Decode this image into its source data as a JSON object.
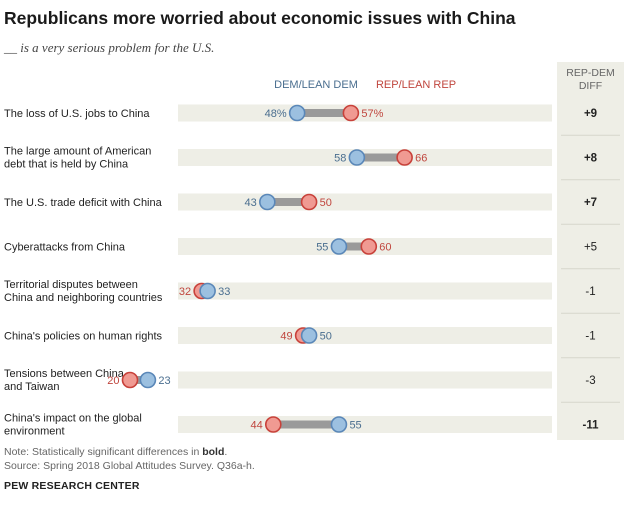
{
  "header": {
    "title": "Republicans more worried about economic issues with China",
    "subtitle": "__ is a very serious problem for the U.S."
  },
  "colors": {
    "dem": "#5a87b8",
    "dem_fill": "#9cc0e0",
    "rep": "#c8413a",
    "rep_fill": "#f09a92",
    "dem_text": "#4a6e8f",
    "rep_text": "#c0463e",
    "track": "#eeeee6",
    "connector": "#9a9a9a",
    "diff_column": "#eeeee6"
  },
  "chart_data": {
    "type": "dot-plot",
    "title": "Republicans more worried about economic issues with China",
    "subtitle": "__ is a very serious problem for the U.S.",
    "unit": "%",
    "xlim": [
      0,
      100
    ],
    "legend": {
      "dem": "DEM/LEAN DEM",
      "rep": "REP/LEAN REP"
    },
    "diff_header": [
      "REP-DEM",
      "DIFF"
    ],
    "rows": [
      {
        "label": [
          "The loss of U.S. jobs to China"
        ],
        "dem": 48,
        "rep": 57,
        "dem_label": "48%",
        "rep_label": "57%",
        "diff": "+9",
        "bold": true
      },
      {
        "label": [
          "The large amount of American",
          "debt that is held by China"
        ],
        "dem": 58,
        "rep": 66,
        "dem_label": "58",
        "rep_label": "66",
        "diff": "+8",
        "bold": true
      },
      {
        "label": [
          "The U.S. trade deficit with China"
        ],
        "dem": 43,
        "rep": 50,
        "dem_label": "43",
        "rep_label": "50",
        "diff": "+7",
        "bold": true
      },
      {
        "label": [
          "Cyberattacks from China"
        ],
        "dem": 55,
        "rep": 60,
        "dem_label": "55",
        "rep_label": "60",
        "diff": "+5",
        "bold": false
      },
      {
        "label": [
          "Territorial disputes between",
          "China and neighboring countries"
        ],
        "dem": 33,
        "rep": 32,
        "dem_label": "33",
        "rep_label": "32",
        "diff": "-1",
        "bold": false
      },
      {
        "label": [
          "China's policies on human rights"
        ],
        "dem": 50,
        "rep": 49,
        "dem_label": "50",
        "rep_label": "49",
        "diff": "-1",
        "bold": false
      },
      {
        "label": [
          "Tensions between China",
          "and Taiwan"
        ],
        "dem": 23,
        "rep": 20,
        "dem_label": "23",
        "rep_label": "20",
        "diff": "-3",
        "bold": false
      },
      {
        "label": [
          "China's impact on the global",
          "environment"
        ],
        "dem": 55,
        "rep": 44,
        "dem_label": "55",
        "rep_label": "44",
        "diff": "-11",
        "bold": true
      }
    ]
  },
  "footer": {
    "note_prefix": "Note: Statistically significant differences in ",
    "note_bold": "bold",
    "note_suffix": ".",
    "source": "Source: Spring 2018 Global Attitudes Survey. Q36a-h.",
    "credit": "PEW RESEARCH CENTER"
  }
}
